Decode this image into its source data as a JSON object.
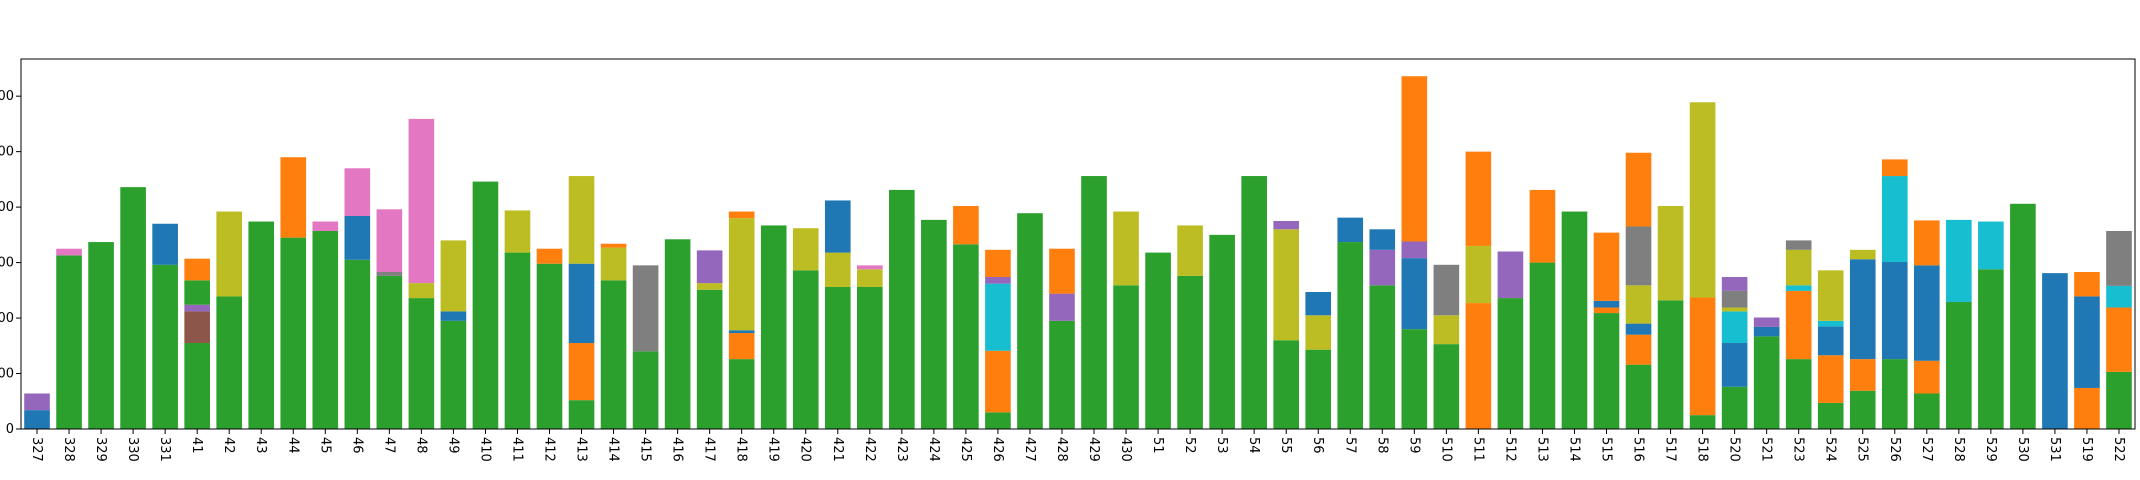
{
  "chart_data": {
    "type": "bar",
    "stacked": true,
    "categories": [
      "327",
      "328",
      "329",
      "330",
      "331",
      "41",
      "42",
      "43",
      "44",
      "45",
      "46",
      "47",
      "48",
      "49",
      "410",
      "411",
      "412",
      "413",
      "414",
      "415",
      "416",
      "417",
      "418",
      "419",
      "420",
      "421",
      "422",
      "423",
      "424",
      "425",
      "426",
      "427",
      "428",
      "429",
      "430",
      "51",
      "52",
      "53",
      "54",
      "55",
      "56",
      "57",
      "58",
      "59",
      "510",
      "511",
      "512",
      "513",
      "514",
      "515",
      "516",
      "517",
      "518",
      "520",
      "521",
      "523",
      "524",
      "525",
      "526",
      "527",
      "528",
      "529",
      "530",
      "531",
      "519",
      "522"
    ],
    "ylim": [
      0,
      667
    ],
    "yticks": [
      0,
      {
        "value": 100,
        "label": "00"
      },
      {
        "value": 200,
        "label": "00"
      },
      {
        "value": 300,
        "label": "00"
      },
      {
        "value": 400,
        "label": "00"
      },
      {
        "value": 500,
        "label": "00"
      },
      {
        "value": 600,
        "label": "00"
      }
    ],
    "series": [
      {
        "color": "#2ca02c",
        "values": [
          0,
          313,
          337,
          436,
          296,
          155,
          239,
          374,
          345,
          357,
          305,
          276,
          236,
          195,
          446,
          318,
          298,
          52,
          268,
          140,
          342,
          251,
          126,
          367,
          286,
          256,
          256,
          431,
          377,
          333,
          30,
          389,
          195,
          456,
          259,
          318,
          276,
          350,
          456,
          160,
          143,
          337,
          259,
          180,
          153,
          0,
          236,
          300,
          392,
          209,
          116,
          232,
          25,
          76,
          167,
          126,
          47,
          69,
          126,
          64,
          229,
          288,
          406,
          0,
          0,
          103
        ]
      },
      {
        "color": "#8c564b",
        "values": [
          0,
          0,
          0,
          0,
          0,
          57,
          0,
          0,
          0,
          0,
          0,
          0,
          0,
          0,
          0,
          0,
          0,
          0,
          0,
          0,
          0,
          0,
          0,
          0,
          0,
          0,
          0,
          0,
          0,
          0,
          0,
          0,
          0,
          0,
          0,
          0,
          0,
          0,
          0,
          0,
          0,
          0,
          0,
          0,
          0,
          0,
          0,
          0,
          0,
          0,
          0,
          0,
          0,
          0,
          0,
          0,
          0,
          0,
          0,
          0,
          0,
          0,
          0,
          0,
          0,
          0
        ]
      },
      {
        "color": "#ff7f0e",
        "values": [
          0,
          0,
          0,
          0,
          0,
          0,
          0,
          0,
          145,
          0,
          0,
          0,
          0,
          0,
          0,
          0,
          27,
          103,
          0,
          0,
          0,
          0,
          47,
          0,
          0,
          0,
          0,
          0,
          0,
          69,
          111,
          0,
          0,
          0,
          0,
          0,
          0,
          0,
          0,
          0,
          0,
          0,
          0,
          0,
          0,
          227,
          0,
          131,
          0,
          10,
          54,
          0,
          212,
          0,
          0,
          123,
          86,
          57,
          0,
          59,
          0,
          0,
          0,
          0,
          74,
          116
        ]
      },
      {
        "color": "#1f77b4",
        "values": [
          34,
          0,
          0,
          0,
          74,
          0,
          0,
          0,
          0,
          0,
          79,
          0,
          0,
          17,
          0,
          0,
          0,
          143,
          0,
          0,
          0,
          0,
          5,
          0,
          0,
          0,
          0,
          0,
          0,
          0,
          0,
          0,
          0,
          0,
          0,
          0,
          0,
          0,
          0,
          0,
          0,
          44,
          0,
          128,
          0,
          0,
          0,
          0,
          0,
          12,
          20,
          0,
          0,
          79,
          17,
          0,
          52,
          180,
          175,
          172,
          0,
          0,
          0,
          281,
          165,
          0
        ]
      },
      {
        "color": "#17becf",
        "values": [
          0,
          0,
          0,
          0,
          0,
          0,
          0,
          0,
          0,
          0,
          0,
          0,
          0,
          0,
          0,
          0,
          0,
          0,
          0,
          0,
          0,
          0,
          0,
          0,
          0,
          0,
          0,
          0,
          0,
          0,
          121,
          0,
          0,
          0,
          0,
          0,
          0,
          0,
          0,
          0,
          0,
          0,
          0,
          0,
          0,
          0,
          0,
          0,
          0,
          0,
          0,
          0,
          0,
          57,
          0,
          10,
          10,
          0,
          155,
          0,
          148,
          86,
          0,
          0,
          0,
          39
        ]
      },
      {
        "color": "#bcbd22",
        "values": [
          0,
          0,
          0,
          0,
          0,
          0,
          153,
          0,
          0,
          0,
          0,
          0,
          27,
          128,
          0,
          76,
          0,
          158,
          59,
          0,
          0,
          12,
          202,
          0,
          76,
          62,
          32,
          0,
          0,
          0,
          0,
          0,
          0,
          0,
          133,
          0,
          91,
          0,
          0,
          200,
          62,
          0,
          0,
          0,
          52,
          103,
          0,
          0,
          0,
          0,
          69,
          170,
          352,
          7,
          0,
          64,
          91,
          17,
          0,
          0,
          0,
          0,
          0,
          0,
          0,
          0
        ]
      },
      {
        "color": "#7f7f7f",
        "values": [
          0,
          0,
          0,
          0,
          0,
          0,
          0,
          0,
          0,
          0,
          0,
          7,
          0,
          0,
          0,
          0,
          0,
          0,
          0,
          155,
          0,
          0,
          0,
          0,
          0,
          0,
          0,
          0,
          0,
          0,
          0,
          0,
          0,
          0,
          0,
          0,
          0,
          0,
          0,
          0,
          0,
          0,
          0,
          0,
          91,
          0,
          0,
          0,
          0,
          0,
          106,
          0,
          0,
          30,
          0,
          17,
          0,
          0,
          0,
          0,
          0,
          0,
          0,
          0,
          0,
          99
        ]
      },
      {
        "color": "#9467bd",
        "values": [
          30,
          0,
          0,
          0,
          0,
          12,
          0,
          0,
          0,
          0,
          0,
          0,
          0,
          0,
          0,
          0,
          0,
          0,
          0,
          0,
          0,
          59,
          0,
          0,
          0,
          0,
          0,
          0,
          0,
          0,
          12,
          0,
          49,
          0,
          0,
          0,
          0,
          0,
          0,
          15,
          0,
          0,
          64,
          30,
          0,
          0,
          84,
          0,
          0,
          0,
          0,
          0,
          0,
          25,
          17,
          0,
          0,
          0,
          0,
          0,
          0,
          0,
          0,
          0,
          0,
          0
        ]
      },
      {
        "color": "#e377c2",
        "values": [
          0,
          12,
          0,
          0,
          0,
          0,
          0,
          0,
          0,
          17,
          86,
          113,
          296,
          0,
          0,
          0,
          0,
          0,
          0,
          0,
          0,
          0,
          0,
          0,
          0,
          0,
          7,
          0,
          0,
          0,
          0,
          0,
          0,
          0,
          0,
          0,
          0,
          0,
          0,
          0,
          0,
          0,
          0,
          0,
          0,
          0,
          0,
          0,
          0,
          0,
          0,
          0,
          0,
          0,
          0,
          0,
          0,
          0,
          0,
          0,
          0,
          0,
          0,
          0,
          0,
          0
        ]
      },
      {
        "color": "#1f77b4",
        "values": [
          0,
          0,
          0,
          0,
          0,
          0,
          0,
          0,
          0,
          0,
          0,
          0,
          0,
          0,
          0,
          0,
          0,
          0,
          0,
          0,
          0,
          0,
          0,
          0,
          0,
          94,
          0,
          0,
          0,
          0,
          0,
          0,
          0,
          0,
          0,
          0,
          0,
          0,
          0,
          0,
          42,
          0,
          37,
          0,
          0,
          0,
          0,
          0,
          0,
          0,
          0,
          0,
          0,
          0,
          0,
          0,
          0,
          0,
          0,
          0,
          0,
          0,
          0,
          0,
          0,
          0
        ]
      },
      {
        "color": "#2ca02c",
        "values": [
          0,
          0,
          0,
          0,
          0,
          44,
          0,
          0,
          0,
          0,
          0,
          0,
          0,
          0,
          0,
          0,
          0,
          0,
          0,
          0,
          0,
          0,
          0,
          0,
          0,
          0,
          0,
          0,
          0,
          0,
          0,
          0,
          0,
          0,
          0,
          0,
          0,
          0,
          0,
          0,
          0,
          0,
          0,
          0,
          0,
          0,
          0,
          0,
          0,
          0,
          0,
          0,
          0,
          0,
          0,
          0,
          0,
          0,
          0,
          0,
          0,
          0,
          0,
          0,
          0,
          0
        ]
      },
      {
        "color": "#ff7f0e",
        "values": [
          0,
          0,
          0,
          0,
          0,
          39,
          0,
          0,
          0,
          0,
          0,
          0,
          0,
          0,
          0,
          0,
          0,
          0,
          7,
          0,
          0,
          0,
          12,
          0,
          0,
          0,
          0,
          0,
          0,
          0,
          49,
          0,
          81,
          0,
          0,
          0,
          0,
          0,
          0,
          0,
          0,
          0,
          0,
          298,
          0,
          170,
          0,
          0,
          0,
          123,
          133,
          0,
          0,
          0,
          0,
          0,
          0,
          0,
          30,
          81,
          0,
          0,
          0,
          0,
          44,
          0
        ]
      }
    ]
  }
}
